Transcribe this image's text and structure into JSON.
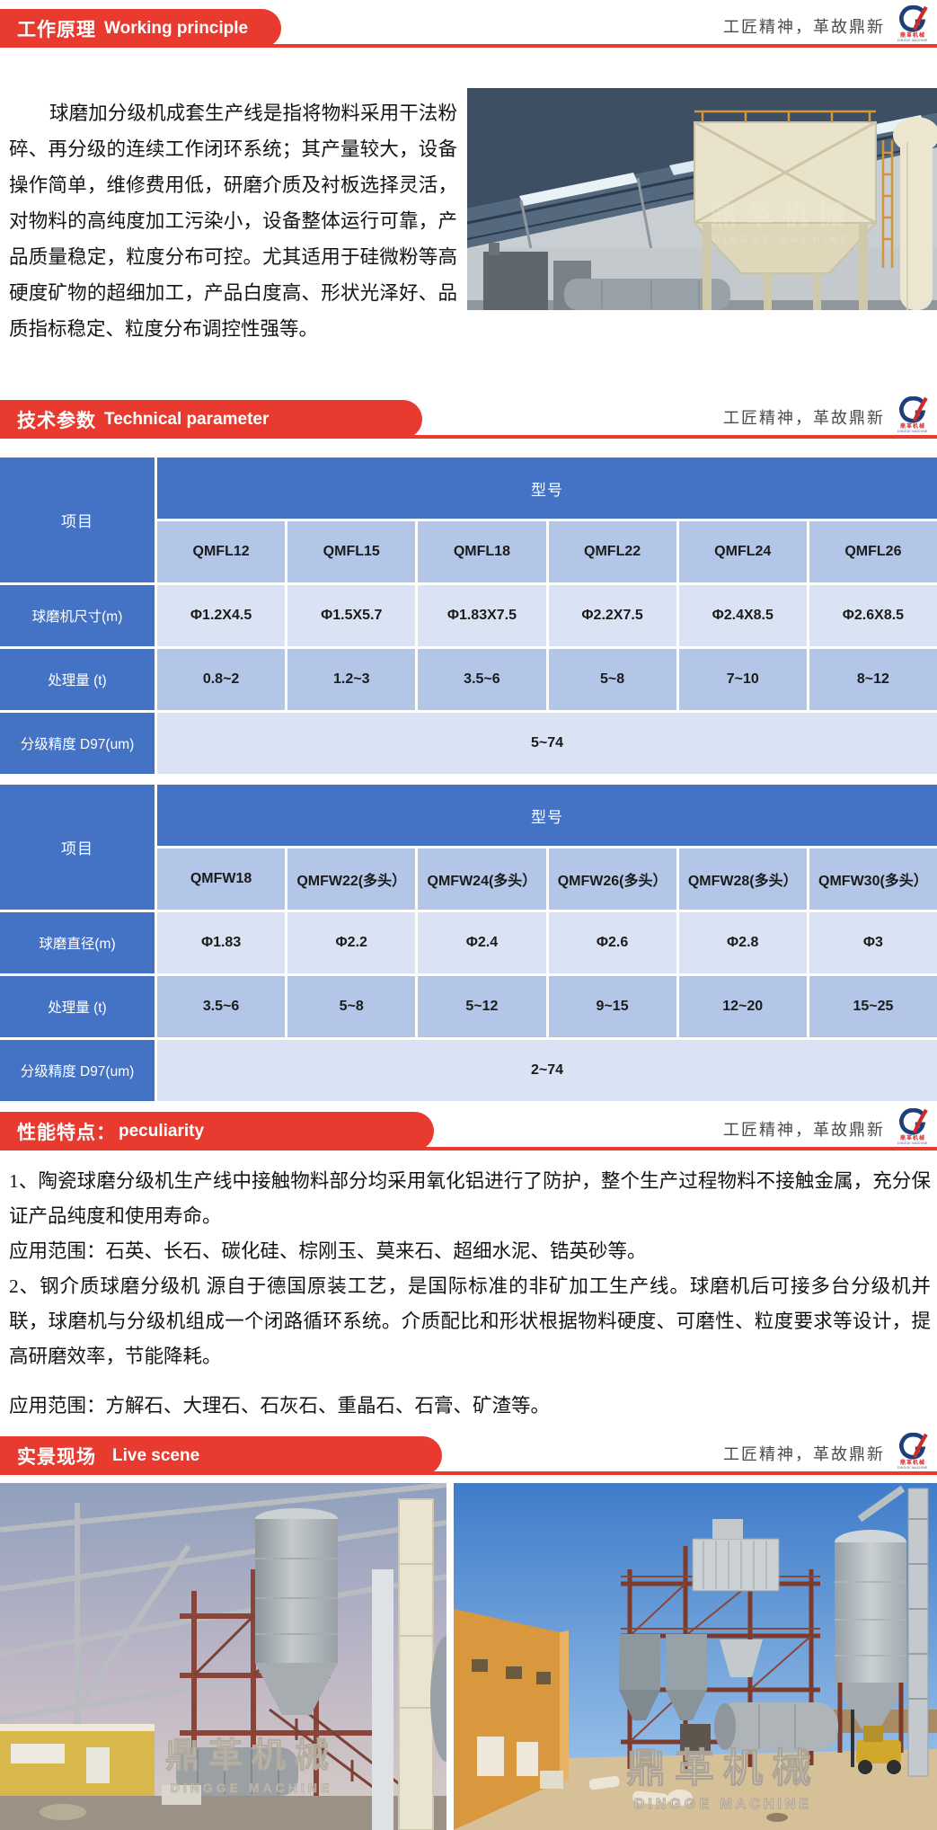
{
  "slogan": "工匠精神，革故鼎新",
  "logo": {
    "caption_zh": "鼎革机械",
    "caption_en": "DINGGE MACHINE"
  },
  "sections": {
    "working_principle": {
      "title_zh": "工作原理",
      "title_en": "Working principle",
      "paragraph": "球磨加分级机成套生产线是指将物料采用干法粉碎、再分级的连续工作闭环系统；其产量较大，设备操作简单，维修费用低，研磨介质及衬板选择灵活，对物料的高纯度加工污染小，设备整体运行可靠，产品质量稳定，粒度分布可控。尤其适用于硅微粉等高硬度矿物的超细加工，产品白度高、形状光泽好、品质指标稳定、粒度分布调控性强等。"
    },
    "technical_parameter": {
      "title_zh": "技术参数",
      "title_en": "Technical parameter",
      "table1": {
        "corner_label": "项目",
        "model_label": "型号",
        "models": [
          "QMFL12",
          "QMFL15",
          "QMFL18",
          "QMFL22",
          "QMFL24",
          "QMFL26"
        ],
        "rows": [
          {
            "label": "球磨机尺寸(m)",
            "values": [
              "Φ1.2X4.5",
              "Φ1.5X5.7",
              "Φ1.83X7.5",
              "Φ2.2X7.5",
              "Φ2.4X8.5",
              "Φ2.6X8.5"
            ]
          },
          {
            "label": "处理量 (t)",
            "values": [
              "0.8~2",
              "1.2~3",
              "3.5~6",
              "5~8",
              "7~10",
              "8~12"
            ]
          }
        ],
        "span_row": {
          "label": "分级精度 D97(um)",
          "value": "5~74"
        }
      },
      "table2": {
        "corner_label": "项目",
        "model_label": "型号",
        "models": [
          "QMFW18",
          "QMFW22(多头）",
          "QMFW24(多头）",
          "QMFW26(多头）",
          "QMFW28(多头）",
          "QMFW30(多头）"
        ],
        "rows": [
          {
            "label": "球磨直径(m)",
            "values": [
              "Φ1.83",
              "Φ2.2",
              "Φ2.4",
              "Φ2.6",
              "Φ2.8",
              "Φ3"
            ]
          },
          {
            "label": "处理量 (t)",
            "values": [
              "3.5~6",
              "5~8",
              "5~12",
              "9~15",
              "12~20",
              "15~25"
            ]
          }
        ],
        "span_row": {
          "label": "分级精度 D97(um)",
          "value": "2~74"
        }
      }
    },
    "peculiarity": {
      "title_zh": "性能特点：",
      "title_en": "peculiarity",
      "paragraphs": [
        "1、陶瓷球磨分级机生产线中接触物料部分均采用氧化铝进行了防护，整个生产过程物料不接触金属，充分保证产品纯度和使用寿命。",
        "应用范围：石英、长石、碳化硅、棕刚玉、莫来石、超细水泥、锆英砂等。",
        "2、钢介质球磨分级机 源自于德国原装工艺，是国际标准的非矿加工生产线。球磨机后可接多台分级机并联，球磨机与分级机组成一个闭路循环系统。介质配比和形状根据物料硬度、可磨性、粒度要求等设计，提高研磨效率，节能降耗。",
        "应用范围：方解石、大理石、石灰石、重晶石、石膏、矿渣等。"
      ]
    },
    "live_scene": {
      "title_zh": "实景现场",
      "title_en": "Live scene",
      "watermark_zh": "鼎革机械",
      "watermark_en": "DINGGE MACHINE"
    }
  },
  "colors": {
    "banner_red": "#e83a2e",
    "table_header_blue": "#4472c4",
    "table_row_light": "#dae3f3",
    "table_row_medium": "#b4c6e7"
  }
}
